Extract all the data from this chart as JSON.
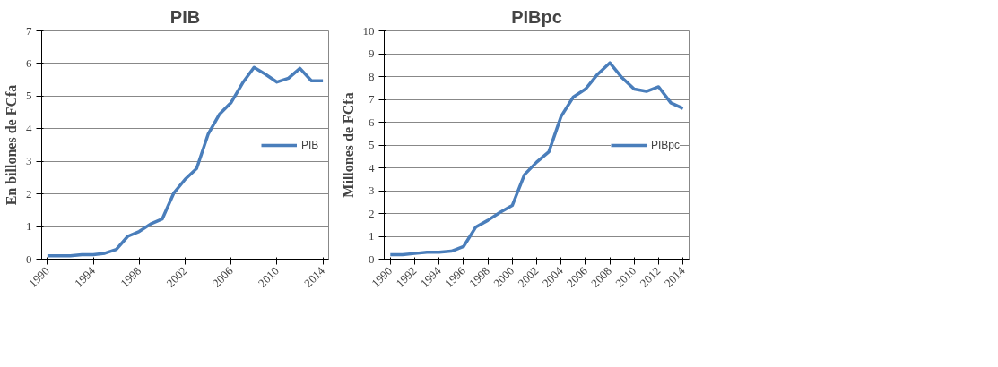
{
  "chart_data": [
    {
      "type": "line",
      "title": "PIB",
      "ylabel": "En billones de FCfa",
      "x": [
        1990,
        1991,
        1992,
        1993,
        1994,
        1995,
        1996,
        1997,
        1998,
        1999,
        2000,
        2001,
        2002,
        2003,
        2004,
        2005,
        2006,
        2007,
        2008,
        2009,
        2010,
        2011,
        2012,
        2013,
        2014
      ],
      "series": [
        {
          "name": "PIB",
          "color": "#4a7ebb",
          "values": [
            0.1,
            0.1,
            0.1,
            0.14,
            0.14,
            0.18,
            0.3,
            0.7,
            0.85,
            1.08,
            1.23,
            2.02,
            2.45,
            2.78,
            3.83,
            4.45,
            4.8,
            5.4,
            5.88,
            5.67,
            5.43,
            5.55,
            5.85,
            5.47,
            5.47
          ]
        }
      ],
      "xlim": [
        1989.5,
        2014.5
      ],
      "xticks": [
        1990,
        1994,
        1998,
        2002,
        2006,
        2010,
        2014
      ],
      "ylim": [
        0,
        7
      ],
      "yticks": [
        0,
        1,
        2,
        3,
        4,
        5,
        6,
        7
      ],
      "grid": "y",
      "legend": "right",
      "marker": "none",
      "line_style": "solid"
    },
    {
      "type": "line",
      "title": "PIBpc",
      "ylabel": "Millones de FCfa",
      "x": [
        1990,
        1991,
        1992,
        1993,
        1994,
        1995,
        1996,
        1997,
        1998,
        1999,
        2000,
        2001,
        2002,
        2003,
        2004,
        2005,
        2006,
        2007,
        2008,
        2009,
        2010,
        2011,
        2012,
        2013,
        2014
      ],
      "series": [
        {
          "name": "PIBpc",
          "color": "#4a7ebb",
          "values": [
            0.2,
            0.2,
            0.25,
            0.3,
            0.3,
            0.35,
            0.55,
            1.4,
            1.7,
            2.05,
            2.35,
            3.7,
            4.25,
            4.7,
            6.25,
            7.1,
            7.45,
            8.1,
            8.6,
            7.95,
            7.45,
            7.35,
            7.55,
            6.85,
            6.6
          ]
        }
      ],
      "xlim": [
        1989.5,
        2014.5
      ],
      "xticks": [
        1990,
        1992,
        1994,
        1996,
        1998,
        2000,
        2002,
        2004,
        2006,
        2008,
        2010,
        2012,
        2014
      ],
      "ylim": [
        0,
        10
      ],
      "yticks": [
        0,
        1,
        2,
        3,
        4,
        5,
        6,
        7,
        8,
        9,
        10
      ],
      "grid": "y",
      "legend": "right",
      "marker": "none",
      "line_style": "solid"
    }
  ]
}
